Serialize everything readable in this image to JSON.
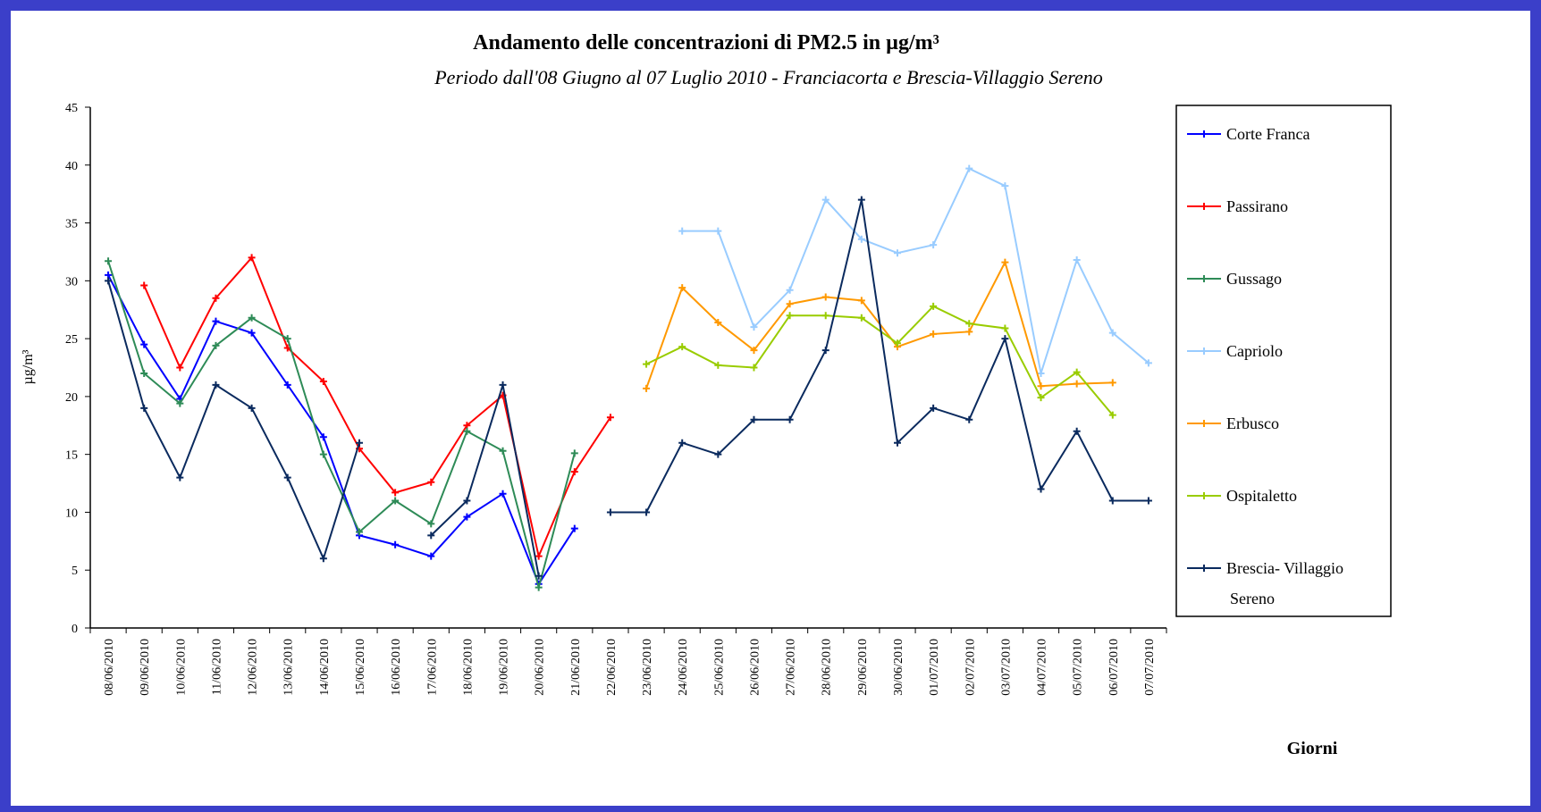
{
  "chart_data": {
    "type": "line",
    "title": "Andamento delle concentrazioni di PM2.5 in µg/m³",
    "subtitle": "Periodo dall'08 Giugno al 07 Luglio 2010 - Franciacorta e Brescia-Villaggio Sereno",
    "y_label": "µg/m³",
    "x_label": "Giorni",
    "categories": [
      "08/06/2010",
      "09/06/2010",
      "10/06/2010",
      "11/06/2010",
      "12/06/2010",
      "13/06/2010",
      "14/06/2010",
      "15/06/2010",
      "16/06/2010",
      "17/06/2010",
      "18/06/2010",
      "19/06/2010",
      "20/06/2010",
      "21/06/2010",
      "22/06/2010",
      "23/06/2010",
      "24/06/2010",
      "25/06/2010",
      "26/06/2010",
      "27/06/2010",
      "28/06/2010",
      "29/06/2010",
      "30/06/2010",
      "01/07/2010",
      "02/07/2010",
      "03/07/2010",
      "04/07/2010",
      "05/07/2010",
      "06/07/2010",
      "07/07/2010"
    ],
    "ylim": [
      0,
      45
    ],
    "yticks": [
      0,
      5,
      10,
      15,
      20,
      25,
      30,
      35,
      40,
      45
    ],
    "legend": "right",
    "series": [
      {
        "name": "Corte Franca",
        "color": "#0000ff",
        "values": [
          30.5,
          24.5,
          19.8,
          26.5,
          25.5,
          21,
          16.5,
          8,
          7.2,
          6.2,
          9.6,
          11.6,
          3.8,
          8.6,
          null,
          null,
          null,
          null,
          null,
          null,
          null,
          null,
          null,
          null,
          null,
          null,
          null,
          null,
          null,
          null
        ]
      },
      {
        "name": "Passirano",
        "color": "#ff0000",
        "values": [
          null,
          29.6,
          22.5,
          28.5,
          32,
          24.2,
          21.3,
          15.5,
          11.7,
          12.6,
          17.5,
          20.1,
          6.2,
          13.5,
          18.2,
          null,
          null,
          null,
          null,
          null,
          null,
          null,
          null,
          null,
          null,
          null,
          null,
          null,
          null,
          null
        ]
      },
      {
        "name": "Gussago",
        "color": "#2e8b57",
        "values": [
          31.7,
          22,
          19.4,
          24.4,
          26.8,
          25,
          15,
          8.3,
          11,
          9,
          17,
          15.3,
          3.5,
          15.1,
          null,
          null,
          null,
          null,
          null,
          null,
          null,
          null,
          null,
          null,
          null,
          null,
          null,
          null,
          null,
          null
        ]
      },
      {
        "name": "Capriolo",
        "color": "#99ccff",
        "values": [
          null,
          null,
          null,
          null,
          null,
          null,
          null,
          null,
          null,
          null,
          null,
          null,
          null,
          null,
          null,
          null,
          34.3,
          34.3,
          26,
          29.2,
          37,
          33.6,
          32.4,
          33.1,
          39.7,
          38.2,
          22,
          31.8,
          25.5,
          22.9
        ]
      },
      {
        "name": "Erbusco",
        "color": "#ff9900",
        "values": [
          null,
          null,
          null,
          null,
          null,
          null,
          null,
          null,
          null,
          null,
          null,
          null,
          null,
          null,
          null,
          20.7,
          29.4,
          26.4,
          24,
          28,
          28.6,
          28.3,
          24.3,
          25.4,
          25.6,
          31.6,
          20.9,
          21.1,
          21.2,
          null
        ]
      },
      {
        "name": "Ospitaletto",
        "color": "#99cc00",
        "values": [
          null,
          null,
          null,
          null,
          null,
          null,
          null,
          null,
          null,
          null,
          null,
          null,
          null,
          null,
          null,
          22.8,
          24.3,
          22.7,
          22.5,
          27,
          27,
          26.8,
          24.6,
          27.8,
          26.3,
          25.9,
          19.9,
          22.1,
          18.4,
          null
        ]
      },
      {
        "name": "Brescia- Villaggio Sereno",
        "color": "#0a2a5e",
        "values": [
          30,
          19,
          13,
          21,
          19,
          13,
          6,
          16,
          null,
          8,
          11,
          21,
          4.5,
          null,
          10,
          10,
          16,
          15,
          18,
          18,
          24,
          37,
          16,
          19,
          18,
          25,
          12,
          17,
          11,
          11
        ]
      }
    ]
  }
}
